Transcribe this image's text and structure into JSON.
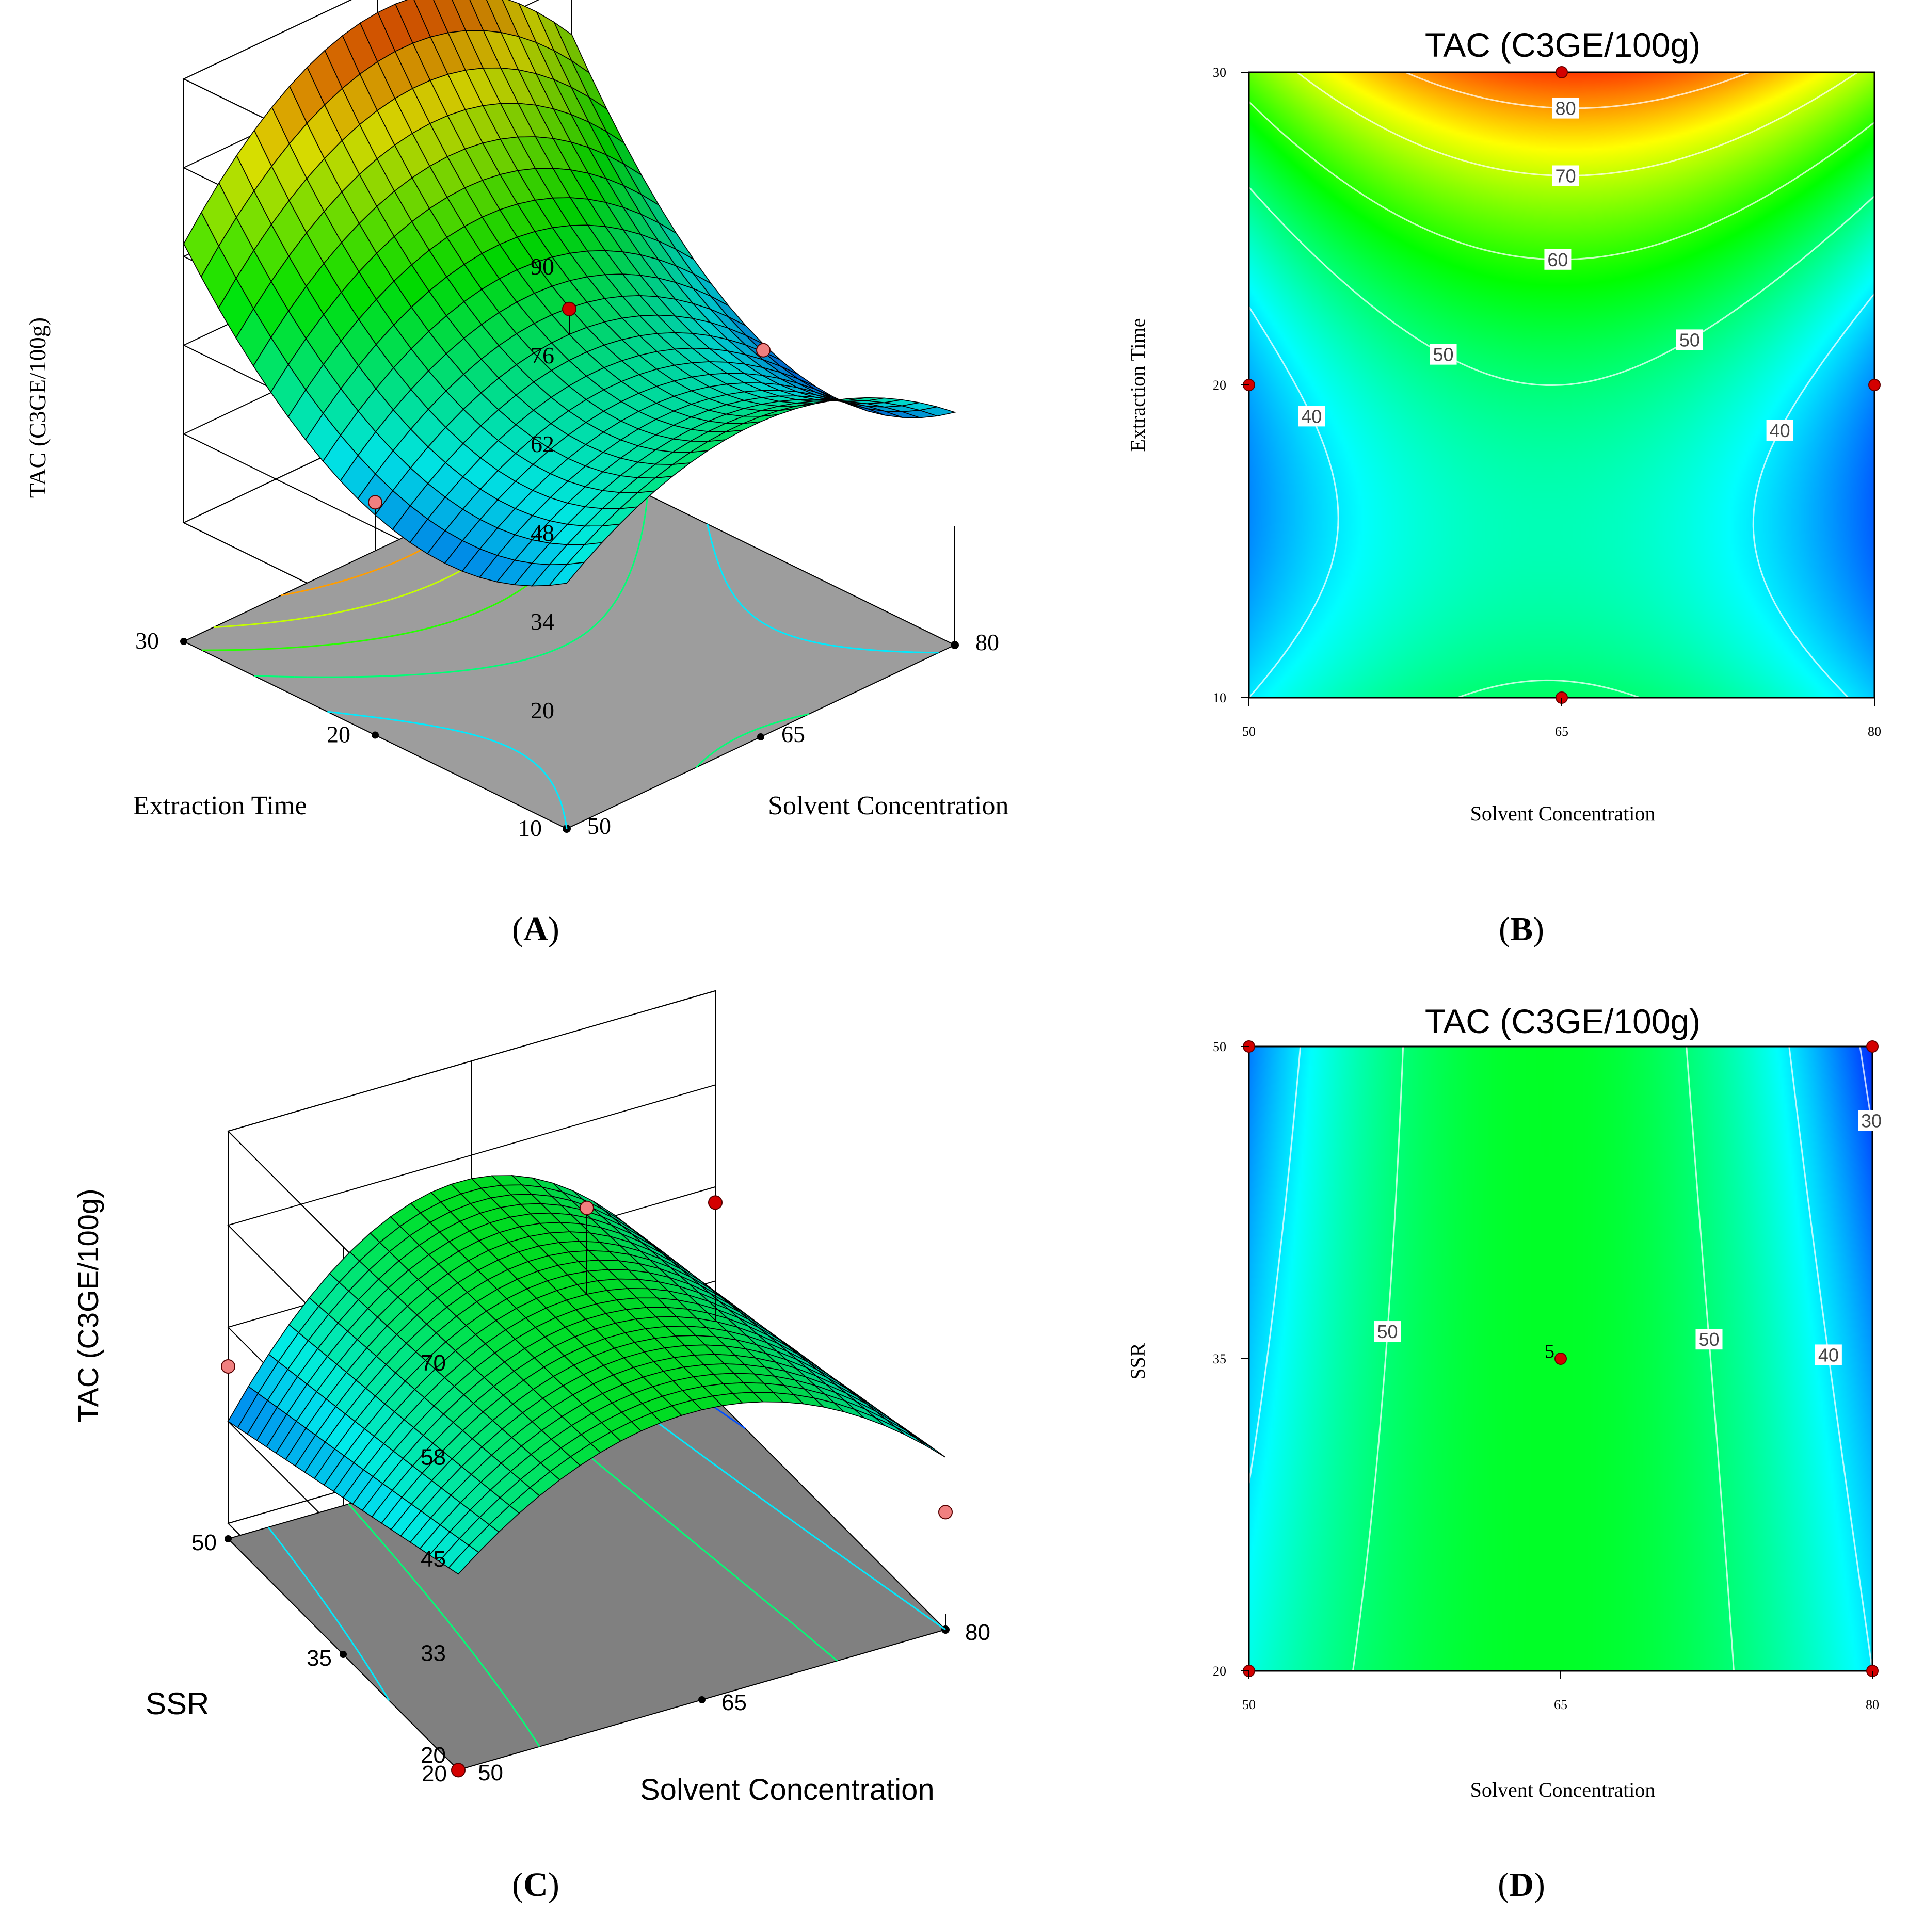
{
  "colors": {
    "ramp": [
      "#0000ff",
      "#00ffff",
      "#00ff00",
      "#ffff00",
      "#ff0000"
    ],
    "floor_a": "#9d9d9d",
    "floor_c": "#808080",
    "design_point": "#d40000",
    "design_point_light": "#f08080"
  },
  "chart_data": [
    {
      "id": "A",
      "panel_label": "A",
      "type": "surface3d",
      "title": "",
      "zlabel": "TAC (C3GE/100g)",
      "xlabel": "Solvent Concentration",
      "ylabel": "Extraction Time",
      "x_range": [
        50,
        80
      ],
      "y_range": [
        10,
        30
      ],
      "z_range": [
        20,
        90
      ],
      "x_ticks": [
        "50",
        "65",
        "80"
      ],
      "y_ticks": [
        "10",
        "20",
        "30"
      ],
      "z_ticks": [
        "20",
        "34",
        "48",
        "62",
        "76",
        "90"
      ],
      "response_model": "quadratic",
      "grid_points": {
        "x": [
          50,
          65,
          80
        ],
        "y": [
          10,
          20,
          30
        ],
        "z": [
          [
            40,
            51,
            38
          ],
          [
            36,
            50,
            34
          ],
          [
            64,
            86,
            68
          ]
        ]
      },
      "floor_contour_levels": [
        40,
        50,
        60,
        70,
        80
      ],
      "design_points": [
        {
          "x": 50,
          "y": 20,
          "z": 38
        },
        {
          "x": 65,
          "y": 20,
          "z": 54
        },
        {
          "x": 80,
          "y": 20,
          "z": 33
        }
      ]
    },
    {
      "id": "B",
      "panel_label": "B",
      "type": "contour",
      "title": "TAC (C3GE/100g)",
      "xlabel": "Solvent Concentration",
      "ylabel": "Extraction Time",
      "x_range": [
        50,
        80
      ],
      "y_range": [
        10,
        30
      ],
      "x_ticks": [
        "50",
        "65",
        "80"
      ],
      "y_ticks": [
        "10",
        "20",
        "30"
      ],
      "color_range": [
        25,
        90
      ],
      "levels": [
        {
          "value": 40,
          "label": "40"
        },
        {
          "value": 50,
          "label": "50"
        },
        {
          "value": 60,
          "label": "60"
        },
        {
          "value": 70,
          "label": "70"
        },
        {
          "value": 80,
          "label": "80"
        }
      ],
      "design_points": [
        {
          "x": 65,
          "y": 30
        },
        {
          "x": 50,
          "y": 20
        },
        {
          "x": 80,
          "y": 20
        },
        {
          "x": 65,
          "y": 10
        }
      ]
    },
    {
      "id": "C",
      "panel_label": "C",
      "type": "surface3d",
      "title": "",
      "zlabel": "TAC (C3GE/100g)",
      "xlabel": "Solvent Concentration",
      "ylabel": "SSR",
      "x_range": [
        50,
        80
      ],
      "y_range": [
        20,
        50
      ],
      "z_range": [
        20,
        70
      ],
      "x_ticks": [
        "50",
        "65",
        "80"
      ],
      "y_ticks": [
        "20",
        "35",
        "50"
      ],
      "z_ticks": [
        "20",
        "33",
        "45",
        "58",
        "70"
      ],
      "response_model": "quadratic",
      "grid_points": {
        "x": [
          50,
          65,
          80
        ],
        "y": [
          20,
          35,
          50
        ],
        "z": [
          [
            43,
            55,
            40
          ],
          [
            38,
            55,
            35
          ],
          [
            33,
            55,
            28
          ]
        ]
      },
      "floor_contour_levels": [
        30,
        40,
        50
      ],
      "design_points": [
        {
          "x": 50,
          "y": 50,
          "z": 40
        },
        {
          "x": 50,
          "y": 20,
          "z": 18
        },
        {
          "x": 65,
          "y": 35,
          "z": 66
        },
        {
          "x": 80,
          "y": 50,
          "z": 43
        },
        {
          "x": 80,
          "y": 20,
          "z": 33
        }
      ]
    },
    {
      "id": "D",
      "panel_label": "D",
      "type": "contour",
      "title": "TAC (C3GE/100g)",
      "xlabel": "Solvent Concentration",
      "ylabel": "SSR",
      "x_range": [
        50,
        80
      ],
      "y_range": [
        20,
        50
      ],
      "x_ticks": [
        "50",
        "65",
        "80"
      ],
      "y_ticks": [
        "20",
        "35",
        "50"
      ],
      "color_range": [
        25,
        90
      ],
      "levels": [
        {
          "value": 30,
          "label": "30"
        },
        {
          "value": 40,
          "label": "40"
        },
        {
          "value": 50,
          "label": "50"
        }
      ],
      "center_label": "5",
      "design_points": [
        {
          "x": 50,
          "y": 50
        },
        {
          "x": 80,
          "y": 50
        },
        {
          "x": 65,
          "y": 35
        },
        {
          "x": 50,
          "y": 20
        },
        {
          "x": 80,
          "y": 20
        }
      ]
    }
  ]
}
